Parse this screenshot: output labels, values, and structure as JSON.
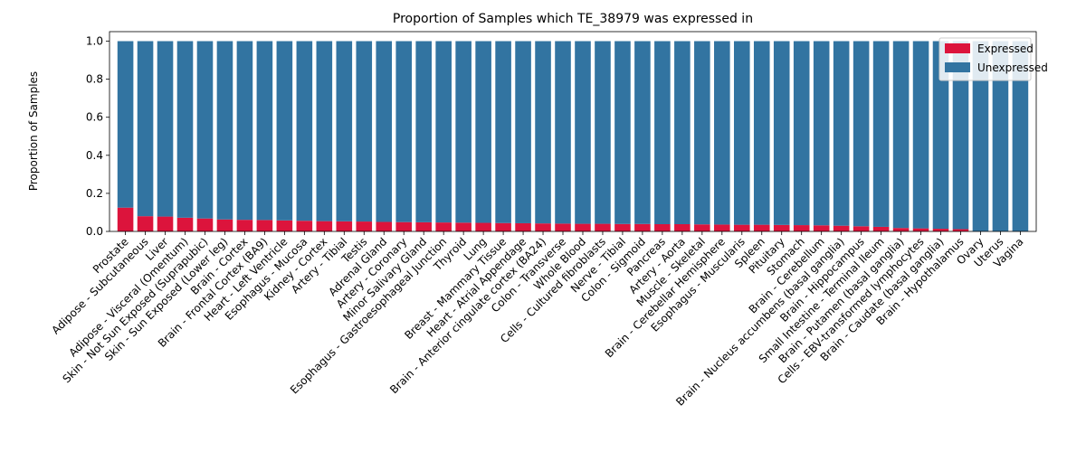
{
  "chart_data": {
    "type": "bar",
    "stacked": true,
    "title": "Proportion of Samples which TE_38979 was expressed in",
    "xlabel": "",
    "ylabel": "Proportion of Samples",
    "ylim": [
      0,
      1.05
    ],
    "yticks": [
      "0.0",
      "0.2",
      "0.4",
      "0.6",
      "0.8",
      "1.0"
    ],
    "grid": false,
    "legend_position": "top-right",
    "categories": [
      "Prostate",
      "Adipose - Subcutaneous",
      "Liver",
      "Adipose - Visceral (Omentum)",
      "Skin - Not Sun Exposed (Suprapubic)",
      "Skin - Sun Exposed (Lower leg)",
      "Brain - Cortex",
      "Brain - Frontal Cortex (BA9)",
      "Heart - Left Ventricle",
      "Esophagus - Mucosa",
      "Kidney - Cortex",
      "Artery - Tibial",
      "Testis",
      "Adrenal Gland",
      "Artery - Coronary",
      "Minor Salivary Gland",
      "Esophagus - Gastroesophageal Junction",
      "Thyroid",
      "Lung",
      "Breast - Mammary Tissue",
      "Heart - Atrial Appendage",
      "Brain - Anterior cingulate cortex (BA24)",
      "Colon - Transverse",
      "Whole Blood",
      "Cells - Cultured fibroblasts",
      "Nerve - Tibial",
      "Colon - Sigmoid",
      "Pancreas",
      "Artery - Aorta",
      "Muscle - Skeletal",
      "Brain - Cerebellar Hemisphere",
      "Esophagus - Muscularis",
      "Spleen",
      "Pituitary",
      "Stomach",
      "Brain - Cerebellum",
      "Brain - Nucleus accumbens (basal ganglia)",
      "Brain - Hippocampus",
      "Small Intestine - Terminal Ileum",
      "Brain - Putamen (basal ganglia)",
      "Cells - EBV-transformed lymphocytes",
      "Brain - Caudate (basal ganglia)",
      "Brain - Hypothalamus",
      "Ovary",
      "Uterus",
      "Vagina"
    ],
    "series": [
      {
        "name": "Expressed",
        "color": "#dc143c",
        "values": [
          0.125,
          0.08,
          0.078,
          0.072,
          0.068,
          0.063,
          0.061,
          0.06,
          0.058,
          0.056,
          0.054,
          0.053,
          0.052,
          0.05,
          0.049,
          0.048,
          0.047,
          0.046,
          0.045,
          0.044,
          0.043,
          0.042,
          0.041,
          0.04,
          0.04,
          0.039,
          0.039,
          0.038,
          0.038,
          0.037,
          0.036,
          0.035,
          0.035,
          0.034,
          0.033,
          0.032,
          0.03,
          0.027,
          0.024,
          0.018,
          0.016,
          0.014,
          0.012,
          0.0,
          0.0,
          0.0
        ]
      },
      {
        "name": "Unexpressed",
        "color": "#3274a1",
        "values": [
          0.875,
          0.92,
          0.922,
          0.928,
          0.932,
          0.937,
          0.939,
          0.94,
          0.942,
          0.944,
          0.946,
          0.947,
          0.948,
          0.95,
          0.951,
          0.952,
          0.953,
          0.954,
          0.955,
          0.956,
          0.957,
          0.958,
          0.959,
          0.96,
          0.96,
          0.961,
          0.961,
          0.962,
          0.962,
          0.963,
          0.964,
          0.965,
          0.965,
          0.966,
          0.967,
          0.968,
          0.97,
          0.973,
          0.976,
          0.982,
          0.984,
          0.986,
          0.988,
          1.0,
          1.0,
          1.0
        ]
      }
    ]
  }
}
